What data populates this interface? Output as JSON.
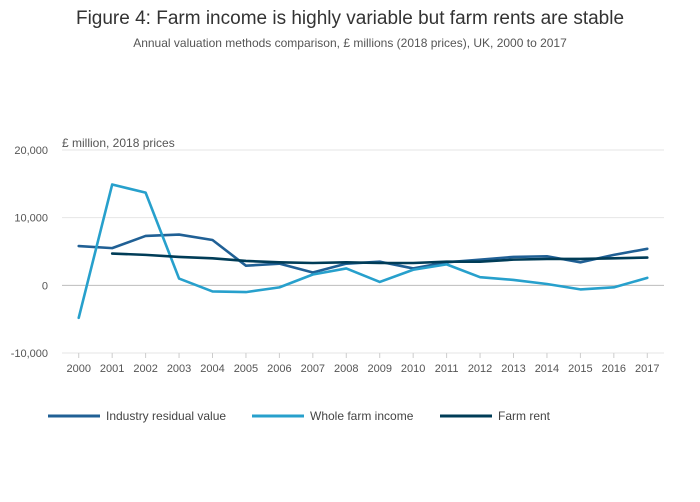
{
  "chart_data": {
    "type": "line",
    "title": "Figure 4: Farm income is highly variable but farm rents are stable",
    "subtitle": "Annual valuation methods comparison, £ millions (2018 prices), UK, 2000 to 2017",
    "ylabel": "£ million, 2018 prices",
    "xlabel": "",
    "ylim": [
      -10000,
      20000
    ],
    "yticks": [
      -10000,
      0,
      10000,
      20000
    ],
    "ytick_labels": [
      "-10,000",
      "0",
      "10,000",
      "20,000"
    ],
    "grid": true,
    "legend_position": "bottom",
    "x": [
      "2000",
      "2001",
      "2002",
      "2003",
      "2004",
      "2005",
      "2006",
      "2007",
      "2008",
      "2009",
      "2010",
      "2011",
      "2012",
      "2013",
      "2014",
      "2015",
      "2016",
      "2017"
    ],
    "series": [
      {
        "name": "Industry residual value",
        "color": "#206095",
        "values": [
          5800,
          5500,
          7300,
          7500,
          6700,
          2900,
          3200,
          1900,
          3200,
          3500,
          2500,
          3400,
          3800,
          4200,
          4300,
          3400,
          4500,
          5400
        ]
      },
      {
        "name": "Whole farm income",
        "color": "#27a0cc",
        "values": [
          -4800,
          14900,
          13700,
          1000,
          -900,
          -1000,
          -300,
          1600,
          2500,
          500,
          2300,
          3100,
          1200,
          800,
          200,
          -600,
          -300,
          1100
        ]
      },
      {
        "name": "Farm rent",
        "color": "#003c57",
        "values": [
          null,
          4700,
          4500,
          4200,
          4000,
          3600,
          3400,
          3300,
          3400,
          3300,
          3300,
          3500,
          3500,
          3800,
          3900,
          3900,
          4000,
          4100
        ]
      }
    ]
  }
}
